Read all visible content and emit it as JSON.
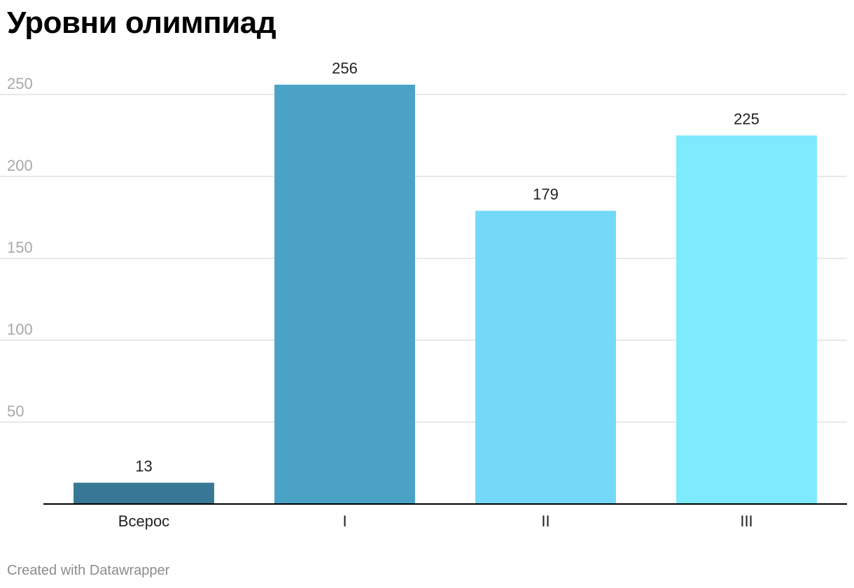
{
  "title": "Уровни олимпиад",
  "footer": "Created with Datawrapper",
  "chart_data": {
    "type": "bar",
    "title": "Уровни олимпиад",
    "xlabel": "",
    "ylabel": "",
    "categories": [
      "Всерос",
      "I",
      "II",
      "III"
    ],
    "values": [
      13,
      256,
      179,
      225
    ],
    "value_labels": [
      "13",
      "256",
      "179",
      "225"
    ],
    "bar_colors": [
      "#367895",
      "#4aa3c7",
      "#74d8f8",
      "#7eeafd"
    ],
    "yticks": [
      50,
      100,
      150,
      200,
      250
    ],
    "ylim": [
      0,
      250
    ],
    "grid": true,
    "legend": "none"
  }
}
